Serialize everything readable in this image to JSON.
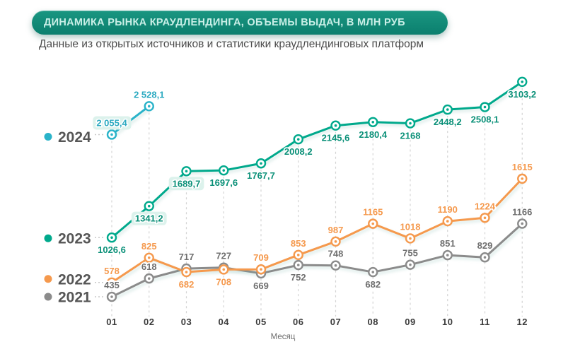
{
  "header": {
    "title": "ДИНАМИКА РЫНКА КРАУДЛЕНДИНГА, ОБЪЕМЫ ВЫДАЧ, В МЛН РУБ",
    "subtitle": "Данные из открытых источников и статистики краудлендинговых платформ"
  },
  "colors": {
    "title_pill_bg": "#0d8170",
    "title_text": "#c9efe7",
    "grid": "#d4d4d4",
    "legend_text": "#565656",
    "tick_text": "#3c3c3c",
    "axis_title_text": "#6e6e6e",
    "series_2024": "#2ab3c9",
    "series_2023": "#00a98c",
    "series_2022": "#f5994d",
    "series_2021": "#8b8b8b"
  },
  "chart_data": {
    "type": "line",
    "title": "ДИНАМИКА РЫНКА КРАУДЛЕНДИНГА, ОБЪЕМЫ ВЫДАЧ, В МЛН РУБ",
    "subtitle": "Данные из открытых источников и статистики краудлендинговых платформ",
    "xlabel": "Месяц",
    "ylabel": "",
    "categories": [
      "01",
      "02",
      "03",
      "04",
      "05",
      "06",
      "07",
      "08",
      "09",
      "10",
      "11",
      "12"
    ],
    "y_axis": "hidden; values labeled directly at data points",
    "grid": "vertical dashed drop-lines at each month",
    "legend_position": "left",
    "series": [
      {
        "name": "2024",
        "color": "#2ab3c9",
        "label_color": "#2aa9c0",
        "month_indices": [
          0,
          1
        ],
        "values": [
          2055.4,
          2528.1
        ],
        "labels": [
          "2 055,4",
          "2 528,1"
        ],
        "label_pos": [
          "above",
          "above"
        ],
        "highlighted_labels": [
          0
        ]
      },
      {
        "name": "2023",
        "color": "#00a98c",
        "label_color": "#0a9078",
        "values": [
          1026.6,
          1341.2,
          1689.7,
          1697.6,
          1767.7,
          2008.2,
          2145.6,
          2180.4,
          2168,
          2448.2,
          2508.1,
          3103.2
        ],
        "labels": [
          "1026,6",
          "1341,2",
          "1689,7",
          "1697,6",
          "1767,7",
          "2008,2",
          "2145,6",
          "2180,4",
          "2168",
          "2448,2",
          "2508,1",
          "3103,2"
        ],
        "label_pos": [
          "below",
          "below",
          "below",
          "below",
          "below",
          "below",
          "below",
          "below",
          "below",
          "below",
          "below",
          "below"
        ],
        "highlighted_labels": [
          1,
          2
        ]
      },
      {
        "name": "2022",
        "color": "#f5994d",
        "label_color": "#f5994d",
        "values": [
          578,
          825,
          682,
          708,
          709,
          853,
          987,
          1165,
          1018,
          1190,
          1224,
          1615
        ],
        "labels": [
          "578",
          "825",
          "682",
          "708",
          "709",
          "853",
          "987",
          "1165",
          "1018",
          "1190",
          "1224",
          "1615"
        ],
        "label_pos": [
          "above",
          "above",
          "below",
          "below",
          "above",
          "above",
          "above",
          "above",
          "above",
          "above",
          "above",
          "above"
        ],
        "highlighted_labels": []
      },
      {
        "name": "2021",
        "color": "#8b8b8b",
        "label_color": "#6f6f6f",
        "values": [
          435,
          618,
          717,
          727,
          669,
          752,
          748,
          682,
          755,
          851,
          829,
          1166
        ],
        "labels": [
          "435",
          "618",
          "717",
          "727",
          "669",
          "752",
          "748",
          "682",
          "755",
          "851",
          "829",
          "1166"
        ],
        "label_pos": [
          "above",
          "above",
          "above",
          "above",
          "below",
          "below",
          "above",
          "below",
          "above",
          "above",
          "above",
          "above"
        ],
        "highlighted_labels": []
      }
    ]
  }
}
